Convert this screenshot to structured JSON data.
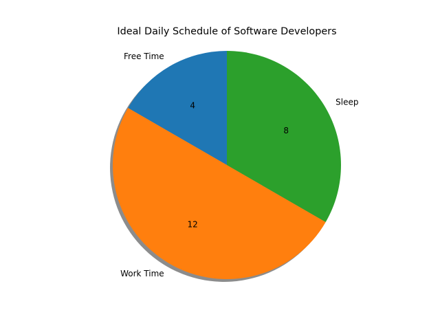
{
  "chart_data": {
    "type": "pie",
    "title": "Ideal Daily Schedule of Software Developers",
    "slices": [
      {
        "label": "Free Time",
        "value": 4,
        "value_label": "4",
        "color": "#1f77b4"
      },
      {
        "label": "Work Time",
        "value": 12,
        "value_label": "12",
        "color": "#ff7f0e"
      },
      {
        "label": "Sleep",
        "value": 8,
        "value_label": "8",
        "color": "#2ca02c"
      }
    ],
    "start_angle_deg": 90,
    "direction": "counterclockwise",
    "shadow": true,
    "legend": false
  }
}
